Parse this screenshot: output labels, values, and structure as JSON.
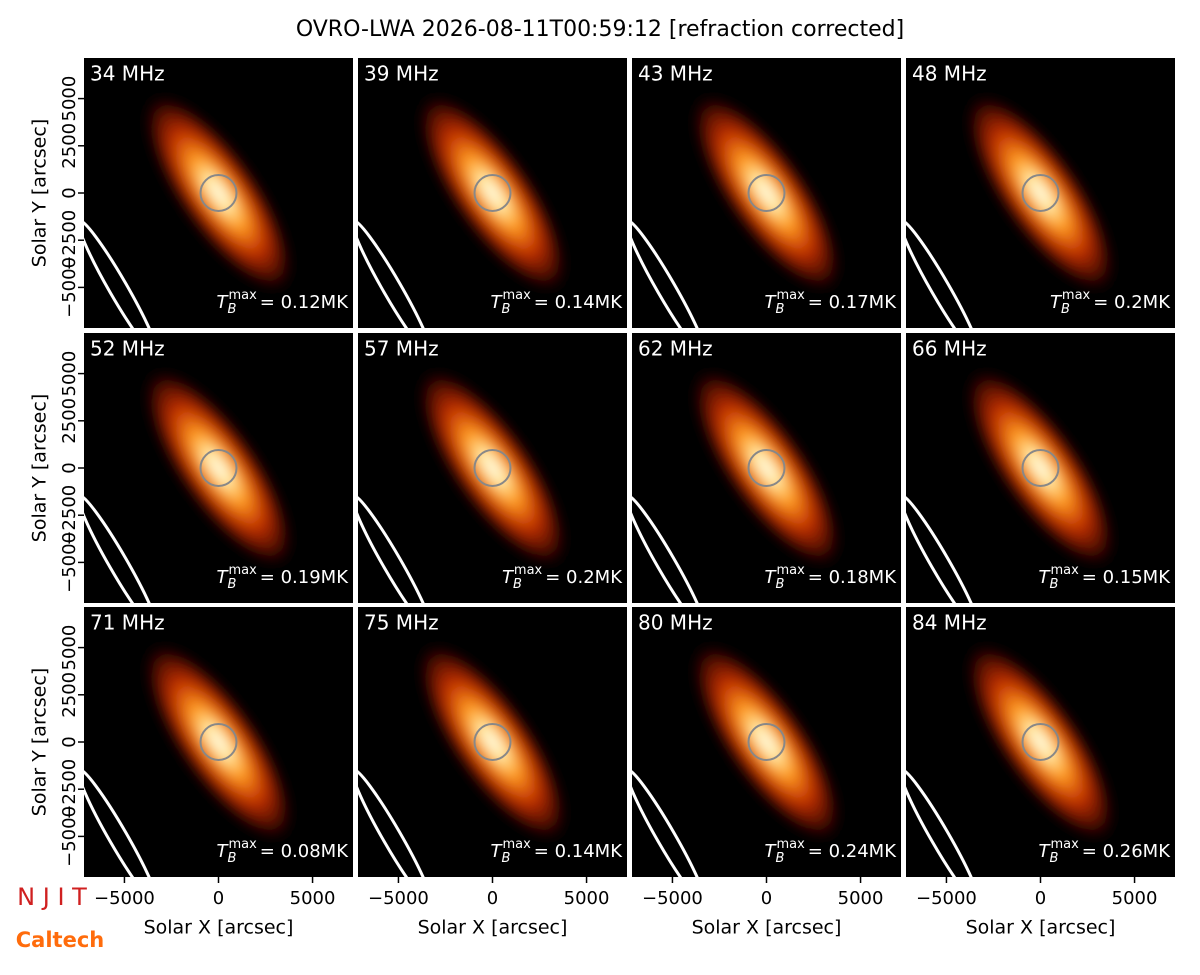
{
  "chart_data": {
    "type": "image-grid",
    "title": "OVRO-LWA 2026-08-11T00:59:12 [refraction corrected]",
    "xlabel": "Solar X [arcsec]",
    "ylabel": "Solar Y [arcsec]",
    "xlim": [
      -7150,
      7150
    ],
    "ylim": [
      -7150,
      7150
    ],
    "xticks": [
      {
        "value": -5000,
        "label": "−5000"
      },
      0,
      5000
    ],
    "yticks": [
      {
        "value": -5000,
        "label": "−5000"
      },
      {
        "value": -2500,
        "label": "−2500"
      },
      0,
      2500,
      5000
    ],
    "peak_symbol": {
      "base": "T",
      "sub": "B",
      "sup": "max"
    },
    "panels": [
      {
        "label": "34 MHz",
        "peak_label": "= 0.12MK"
      },
      {
        "label": "39 MHz",
        "peak_label": "= 0.14MK"
      },
      {
        "label": "43 MHz",
        "peak_label": "= 0.17MK"
      },
      {
        "label": "48 MHz",
        "peak_label": "= 0.2MK"
      },
      {
        "label": "52 MHz",
        "peak_label": "= 0.19MK"
      },
      {
        "label": "57 MHz",
        "peak_label": "= 0.2MK"
      },
      {
        "label": "62 MHz",
        "peak_label": "= 0.18MK"
      },
      {
        "label": "66 MHz",
        "peak_label": "= 0.15MK"
      },
      {
        "label": "71 MHz",
        "peak_label": "= 0.08MK"
      },
      {
        "label": "75 MHz",
        "peak_label": "= 0.14MK"
      },
      {
        "label": "80 MHz",
        "peak_label": "= 0.24MK"
      },
      {
        "label": "84 MHz",
        "peak_label": "= 0.26MK"
      }
    ],
    "logos": [
      "N J I T",
      "Caltech"
    ]
  }
}
